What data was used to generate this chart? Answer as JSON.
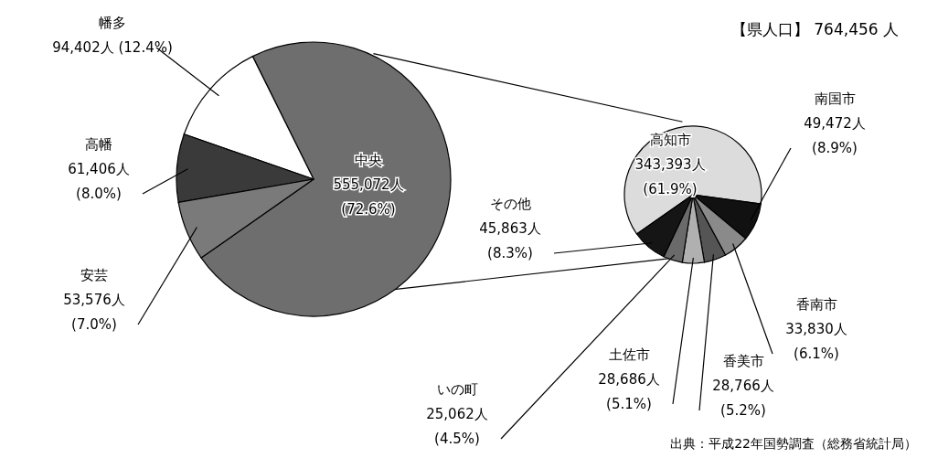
{
  "chart_data": [
    {
      "type": "pie",
      "categories": [
        "中央",
        "幡多",
        "高幡",
        "安芸"
      ],
      "values": [
        555072,
        94402,
        61406,
        53576
      ],
      "colors": [
        "#6e6e6e",
        "#ffffff",
        "#3a3a3a",
        "#7a7a7a"
      ],
      "value_labels": [
        "555,072人 (72.6%)",
        "94,402人 (12.4%)",
        "61,406人 (8.0%)",
        "53,576人 (7.0%)"
      ]
    },
    {
      "type": "pie",
      "categories": [
        "高知市",
        "南国市",
        "香南市",
        "香美市",
        "土佐市",
        "いの町",
        "その他"
      ],
      "values": [
        343393,
        49472,
        33830,
        28766,
        28686,
        25062,
        45863
      ],
      "colors": [
        "#dcdcdc",
        "#111111",
        "#8a8a8a",
        "#555555",
        "#b0b0b0",
        "#6a6a6a",
        "#151515"
      ],
      "value_labels": [
        "343,393人 (61.9%)",
        "49,472人 (8.9%)",
        "33,830人 (6.1%)",
        "28,766人 (5.2%)",
        "28,686人 (5.1%)",
        "25,062人 (4.5%)",
        "45,863人 (8.3%)"
      ],
      "annotations": [
        "【県人口】 764,456 人",
        "出典：平成22年国勢調査（総務省統計局）"
      ]
    }
  ]
}
